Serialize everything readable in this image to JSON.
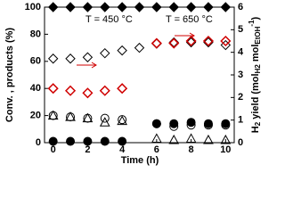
{
  "chart_data": {
    "type": "scatter",
    "xlabel": "Time (h)",
    "ylabel": "Conv. , products (%)",
    "y2label": [
      "H",
      "2",
      " yield (mol",
      "H2",
      " mol",
      "EtOH",
      "-1",
      ")"
    ],
    "annotations": [
      "T = 450 °C",
      "T = 650 °C"
    ],
    "xlim": [
      -0.5,
      10.5
    ],
    "xticks": [
      0,
      2,
      4,
      6,
      8,
      10
    ],
    "ylim": [
      0,
      100
    ],
    "yticks": [
      0,
      20,
      40,
      60,
      80,
      100
    ],
    "y2lim": [
      0,
      6
    ],
    "y2ticks": [
      0,
      1,
      2,
      3,
      4,
      5,
      6
    ],
    "series": [
      {
        "marker": "diamond",
        "filled": true,
        "color": "#000000",
        "x": [
          0,
          1,
          2,
          3,
          4,
          5,
          6,
          7,
          8,
          9,
          10
        ],
        "values": [
          100,
          100,
          100,
          100,
          100,
          100,
          100,
          100,
          100,
          100,
          100
        ]
      },
      {
        "marker": "diamond",
        "filled": false,
        "color": "#000000",
        "x": [
          0,
          1,
          2,
          3,
          4,
          5,
          6,
          7,
          8,
          9,
          10
        ],
        "values": [
          62,
          62,
          63,
          66,
          68,
          70,
          73,
          74,
          74,
          74,
          72
        ]
      },
      {
        "marker": "diamond",
        "filled": false,
        "color": "#d00000",
        "axis": "y2",
        "x": [
          0,
          1,
          2,
          3,
          4,
          6,
          7,
          8,
          9,
          10
        ],
        "values": [
          2.4,
          2.3,
          2.2,
          2.3,
          2.4,
          4.4,
          4.4,
          4.5,
          4.5,
          4.5
        ]
      },
      {
        "marker": "circle",
        "filled": false,
        "color": "#000000",
        "x": [
          0,
          1,
          2,
          3,
          4,
          6,
          7,
          8,
          9,
          10
        ],
        "values": [
          20,
          19,
          18,
          18,
          17,
          14,
          12,
          13,
          13,
          13
        ]
      },
      {
        "marker": "triangle",
        "filled": false,
        "color": "#000000",
        "x": [
          0,
          1,
          2,
          3,
          4,
          6,
          7,
          8,
          9,
          10
        ],
        "values": [
          20,
          19,
          18,
          15,
          16,
          3,
          2,
          3,
          2,
          2
        ]
      },
      {
        "marker": "circle",
        "filled": true,
        "color": "#000000",
        "x": [
          0,
          1,
          2,
          3,
          4,
          6,
          7,
          8,
          9,
          10
        ],
        "values": [
          1,
          1,
          1,
          1,
          1,
          14,
          14,
          15,
          14,
          14
        ]
      }
    ]
  }
}
